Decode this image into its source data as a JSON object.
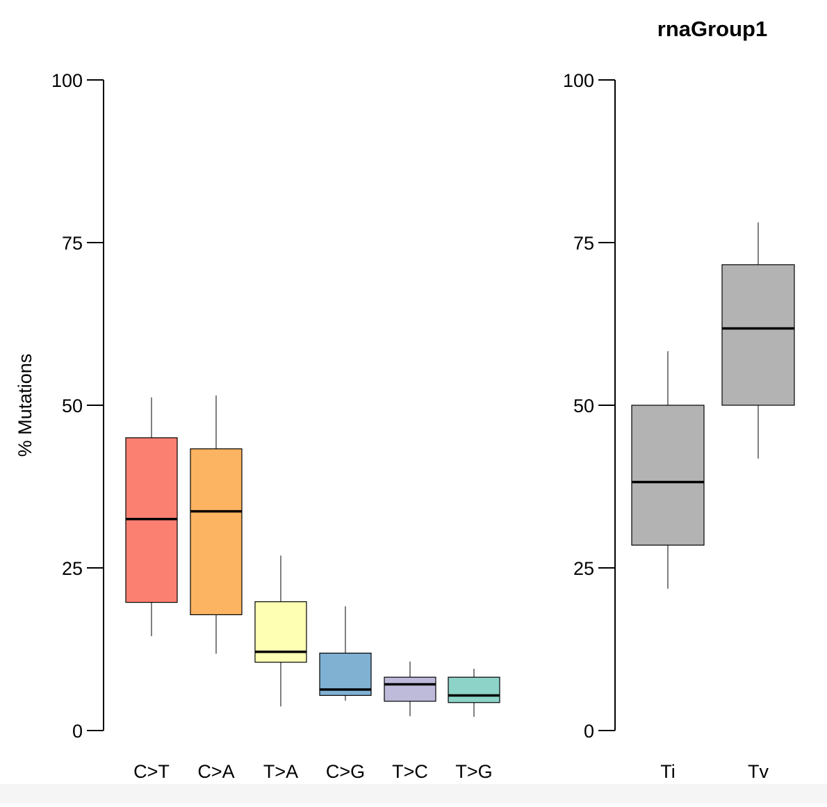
{
  "chart_data": [
    {
      "type": "boxplot",
      "ylabel": "% Mutations",
      "ylim": [
        0,
        100
      ],
      "yticks": [
        0,
        25,
        50,
        75,
        100
      ],
      "categories": [
        "C>T",
        "C>A",
        "T>A",
        "C>G",
        "T>C",
        "T>G"
      ],
      "boxes": [
        {
          "label": "C>T",
          "min": 14.5,
          "q1": 19.7,
          "median": 32.5,
          "q3": 45.0,
          "max": 51.2,
          "color": "#FB8072"
        },
        {
          "label": "C>A",
          "min": 11.8,
          "q1": 17.8,
          "median": 33.7,
          "q3": 43.3,
          "max": 51.5,
          "color": "#FDB462"
        },
        {
          "label": "T>A",
          "min": 3.7,
          "q1": 10.5,
          "median": 12.1,
          "q3": 19.8,
          "max": 26.9,
          "color": "#FFFFB3"
        },
        {
          "label": "C>G",
          "min": 4.6,
          "q1": 5.4,
          "median": 6.3,
          "q3": 11.9,
          "max": 19.1,
          "color": "#80B1D3"
        },
        {
          "label": "T>C",
          "min": 2.2,
          "q1": 4.5,
          "median": 7.1,
          "q3": 8.2,
          "max": 10.6,
          "color": "#BEBADA"
        },
        {
          "label": "T>G",
          "min": 2.1,
          "q1": 4.3,
          "median": 5.4,
          "q3": 8.2,
          "max": 9.5,
          "color": "#8DD3C7"
        }
      ]
    },
    {
      "type": "boxplot",
      "title": "rnaGroup1",
      "ylim": [
        0,
        100
      ],
      "yticks": [
        0,
        25,
        50,
        75,
        100
      ],
      "categories": [
        "Ti",
        "Tv"
      ],
      "boxes": [
        {
          "label": "Ti",
          "min": 21.8,
          "q1": 28.5,
          "median": 38.2,
          "q3": 50.0,
          "max": 58.3,
          "color": "#B3B3B3"
        },
        {
          "label": "Tv",
          "min": 41.8,
          "q1": 50.0,
          "median": 61.8,
          "q3": 71.6,
          "max": 78.1,
          "color": "#B3B3B3"
        }
      ]
    }
  ]
}
